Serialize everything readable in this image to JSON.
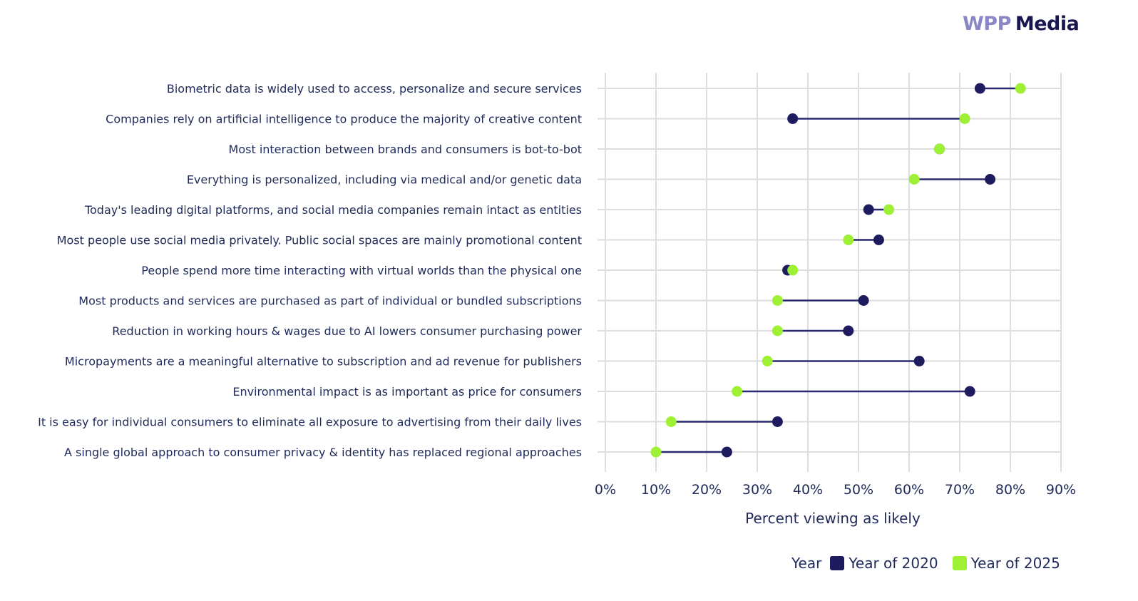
{
  "logo": {
    "part1": "WPP",
    "part2": "Media"
  },
  "colors": {
    "series_2020": "#1e1b5e",
    "series_2025": "#9ef034",
    "connector": "#2a2870",
    "grid": "#dedede",
    "text": "#1f2a5a"
  },
  "chart_data": {
    "type": "dumbbell",
    "xlabel": "Percent viewing as likely",
    "xlim": [
      0,
      90
    ],
    "xticks": [
      0,
      10,
      20,
      30,
      40,
      50,
      60,
      70,
      80,
      90
    ],
    "xtick_labels": [
      "0%",
      "10%",
      "20%",
      "30%",
      "40%",
      "50%",
      "60%",
      "70%",
      "80%",
      "90%"
    ],
    "grid": true,
    "legend": {
      "title": "Year",
      "position": "bottom-right",
      "entries": [
        "Year of 2020",
        "Year of 2025"
      ]
    },
    "categories": [
      "Biometric data is widely used to access, personalize and secure services",
      "Companies rely on artificial intelligence to produce the majority of creative content",
      "Most interaction between brands and consumers is bot-to-bot",
      "Everything is personalized, including via medical and/or genetic data",
      "Today's leading digital platforms, and social media companies remain intact as entities",
      "Most people use social media privately. Public social spaces are mainly promotional content",
      "People spend more time interacting with virtual worlds than the physical one",
      "Most products and services are purchased as part of individual or bundled subscriptions",
      "Reduction in working hours & wages due to AI lowers consumer purchasing power",
      "Micropayments are a meaningful alternative to subscription and ad revenue for publishers",
      "Environmental impact is as important as price for consumers",
      "It is easy for individual consumers to eliminate all exposure to advertising from their daily lives",
      "A single global approach to consumer privacy & identity has replaced regional approaches"
    ],
    "series": [
      {
        "name": "Year of 2020",
        "values": [
          74,
          37,
          66,
          76,
          52,
          54,
          36,
          51,
          48,
          62,
          72,
          34,
          24
        ]
      },
      {
        "name": "Year of 2025",
        "values": [
          82,
          71,
          66,
          61,
          56,
          48,
          37,
          34,
          34,
          32,
          26,
          13,
          10
        ]
      }
    ]
  }
}
